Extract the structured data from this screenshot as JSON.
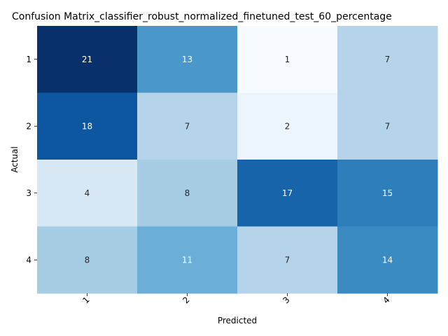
{
  "chart_data": {
    "type": "heatmap",
    "title": "Confusion Matrix_classifier_robust_normalized_finetuned_test_60_percentage",
    "xlabel": "Predicted",
    "ylabel": "Actual",
    "x_categories": [
      "1",
      "2",
      "3",
      "4"
    ],
    "y_categories": [
      "1",
      "2",
      "3",
      "4"
    ],
    "values": [
      [
        21,
        13,
        1,
        7
      ],
      [
        18,
        7,
        2,
        7
      ],
      [
        4,
        8,
        17,
        15
      ],
      [
        8,
        11,
        7,
        14
      ]
    ],
    "colormap": "Blues",
    "colorbar": false
  }
}
